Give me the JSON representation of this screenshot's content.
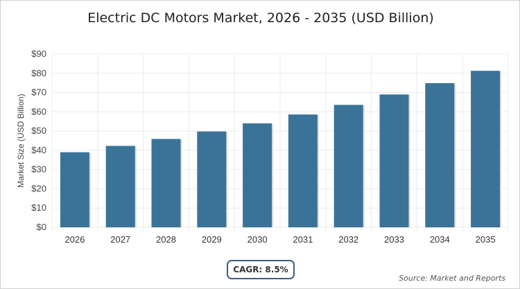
{
  "chart_data": {
    "type": "bar",
    "title": "Electric DC Motors Market, 2026 - 2035 (USD Billion)",
    "xlabel": "",
    "ylabel": "Market Size (USD Billion)",
    "categories": [
      "2026",
      "2027",
      "2028",
      "2029",
      "2030",
      "2031",
      "2032",
      "2033",
      "2034",
      "2035"
    ],
    "values": [
      39.0,
      42.3,
      45.9,
      49.8,
      54.0,
      58.6,
      63.6,
      69.0,
      74.9,
      81.3
    ],
    "ylim": [
      0,
      90
    ],
    "yticks": [
      "$0",
      "$10",
      "$20",
      "$30",
      "$40",
      "$50",
      "$60",
      "$70",
      "$80",
      "$90"
    ],
    "grid": true,
    "bar_color": "#3b7398"
  },
  "cagr_label": "CAGR: 8.5%",
  "source": "Source: Market and Reports"
}
